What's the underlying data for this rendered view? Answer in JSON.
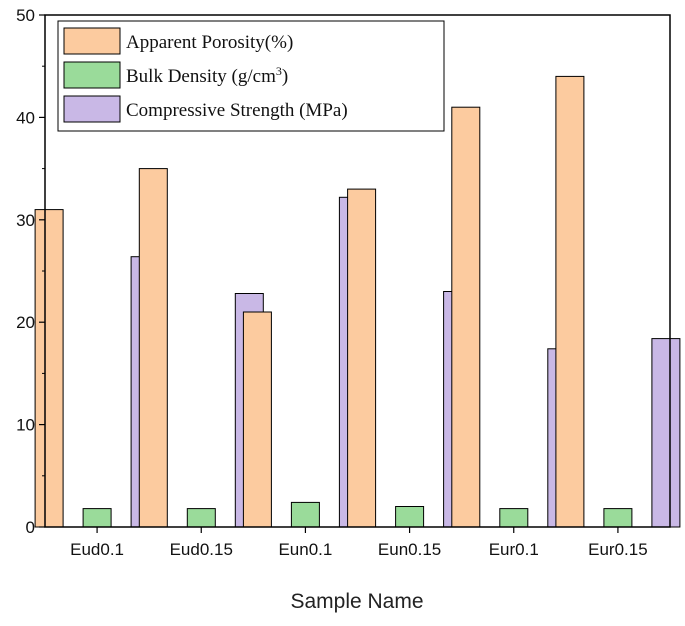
{
  "chart_data": {
    "type": "bar",
    "title": "",
    "xlabel": "Sample Name",
    "ylabel": "",
    "ylim": [
      0,
      50
    ],
    "yticks": [
      0,
      10,
      20,
      30,
      40,
      50
    ],
    "categories": [
      "Eud0.1",
      "Eud0.15",
      "Eun0.1",
      "Eun0.15",
      "Eur0.1",
      "Eur0.15"
    ],
    "series": [
      {
        "name": "Apparent Porosity(%)",
        "color": "#FCCB9F",
        "values": [
          31,
          35,
          21,
          33,
          41,
          44
        ]
      },
      {
        "name": "Bulk Density (g/cm³)",
        "color": "#9ADB9A",
        "values": [
          1.8,
          1.8,
          2.4,
          2.0,
          1.8,
          1.8
        ]
      },
      {
        "name": "Compressive Strength (MPa)",
        "color": "#C9B8E6",
        "values": [
          26.4,
          22.8,
          32.2,
          23.0,
          17.4,
          18.4
        ]
      }
    ],
    "legend": {
      "position": "top-left",
      "labels": [
        "Apparent Porosity(%)",
        "Bulk Density (g/cm",
        "3",
        ")",
        "Compressive Strength (MPa)"
      ]
    },
    "grid": false
  }
}
